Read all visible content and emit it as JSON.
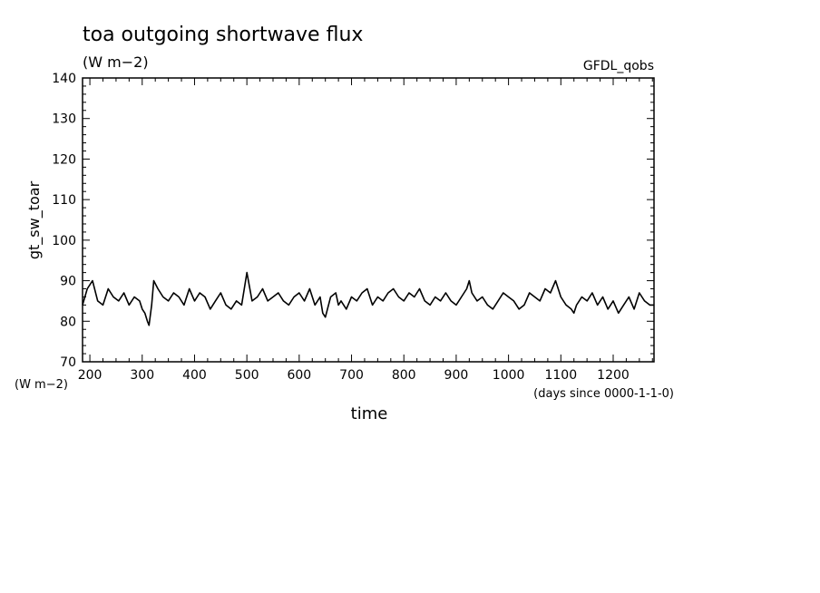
{
  "chart_data": {
    "type": "line",
    "title": "toa outgoing shortwave flux",
    "subtitle": "(W m−2)",
    "label_right": "GFDL_qobs",
    "ylabel": "gt_sw_toar",
    "ylabel_units": "(W m−2)",
    "xlabel": "time",
    "xlabel_units": "(days since 0000-1-1-0)",
    "xlim": [
      186,
      1278
    ],
    "ylim": [
      70,
      140
    ],
    "x_ticks": [
      200,
      300,
      400,
      500,
      600,
      700,
      800,
      900,
      1000,
      1100,
      1200
    ],
    "y_ticks": [
      70,
      80,
      90,
      100,
      110,
      120,
      130,
      140
    ],
    "grid": false,
    "line_color": "#000000",
    "series": [
      {
        "x": [
          186,
          195,
          205,
          215,
          225,
          235,
          245,
          255,
          265,
          275,
          285,
          295,
          300,
          305,
          310,
          313,
          318,
          322,
          330,
          340,
          350,
          360,
          370,
          380,
          390,
          400,
          410,
          420,
          430,
          440,
          450,
          460,
          470,
          480,
          490,
          495,
          500,
          510,
          520,
          530,
          540,
          550,
          560,
          570,
          580,
          590,
          600,
          610,
          620,
          630,
          640,
          645,
          650,
          660,
          670,
          675,
          680,
          690,
          700,
          710,
          720,
          730,
          740,
          750,
          760,
          770,
          780,
          790,
          800,
          810,
          820,
          830,
          840,
          850,
          860,
          870,
          880,
          890,
          900,
          910,
          920,
          925,
          930,
          940,
          950,
          960,
          970,
          980,
          990,
          1000,
          1010,
          1020,
          1030,
          1040,
          1050,
          1060,
          1070,
          1080,
          1090,
          1100,
          1110,
          1120,
          1125,
          1130,
          1140,
          1150,
          1160,
          1170,
          1180,
          1190,
          1200,
          1210,
          1220,
          1230,
          1240,
          1250,
          1260,
          1270,
          1278
        ],
        "y": [
          84,
          88,
          90,
          85,
          84,
          88,
          86,
          85,
          87,
          84,
          86,
          85,
          83,
          82,
          80,
          79,
          84,
          90,
          88,
          86,
          85,
          87,
          86,
          84,
          88,
          85,
          87,
          86,
          83,
          85,
          87,
          84,
          83,
          85,
          84,
          88,
          92,
          85,
          86,
          88,
          85,
          86,
          87,
          85,
          84,
          86,
          87,
          85,
          88,
          84,
          86,
          82,
          81,
          86,
          87,
          84,
          85,
          83,
          86,
          85,
          87,
          88,
          84,
          86,
          85,
          87,
          88,
          86,
          85,
          87,
          86,
          88,
          85,
          84,
          86,
          85,
          87,
          85,
          84,
          86,
          88,
          90,
          87,
          85,
          86,
          84,
          83,
          85,
          87,
          86,
          85,
          83,
          84,
          87,
          86,
          85,
          88,
          87,
          90,
          86,
          84,
          83,
          82,
          84,
          86,
          85,
          87,
          84,
          86,
          83,
          85,
          82,
          84,
          86,
          83,
          87,
          85,
          84,
          84
        ]
      }
    ]
  }
}
